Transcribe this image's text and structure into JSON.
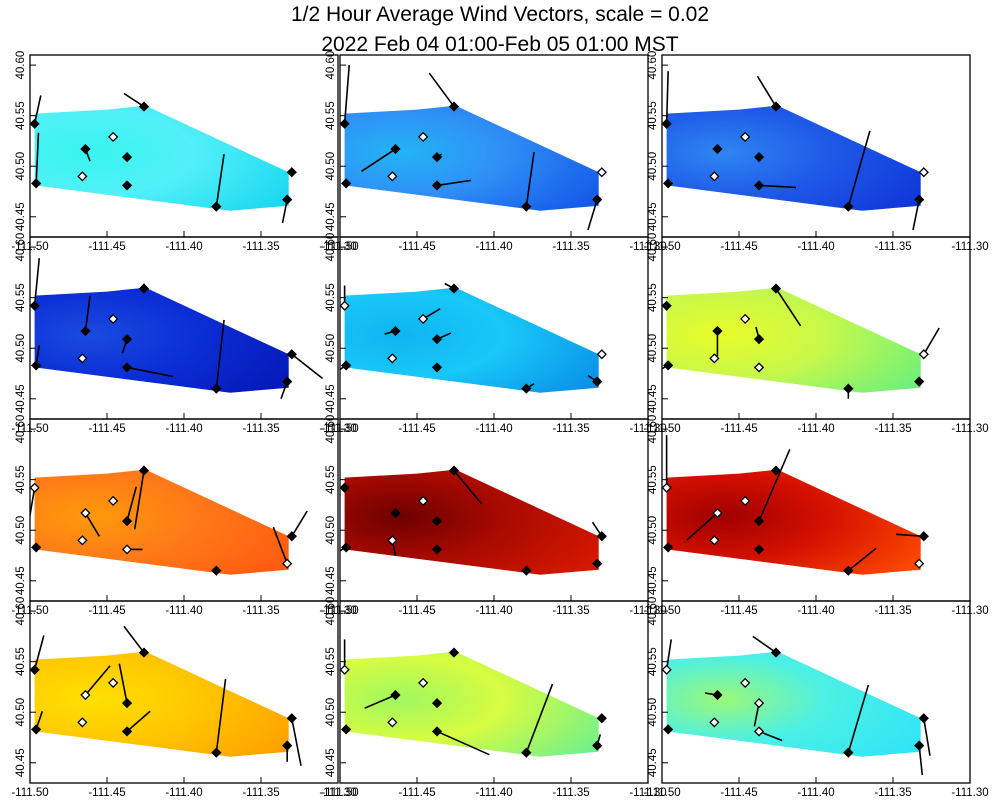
{
  "title": {
    "line1": "1/2 Hour Average Wind Vectors, scale =  0.02",
    "line2": "2022 Feb 04 01:00-Feb 05 01:00 MST"
  },
  "chart_data": {
    "type": "heatmap",
    "description_of_marks": "12 small-multiple map panels, each a colored interpolated field with wind-vector sticks at station markers",
    "xlim": [
      -111.5,
      -111.3
    ],
    "ylim": [
      40.43,
      40.61
    ],
    "xticks": [
      -111.5,
      -111.45,
      -111.4,
      -111.35,
      -111.3
    ],
    "xtick_labels": [
      "-111.50",
      "-111.45",
      "-111.40",
      "-111.35",
      "-111.30"
    ],
    "yticks": [
      40.45,
      40.5,
      40.55,
      40.6
    ],
    "ytick_labels": [
      "40.45",
      "40.50",
      "40.55",
      "40.60"
    ],
    "region_outline": [
      [
        -111.497,
        40.481
      ],
      [
        -111.497,
        40.552
      ],
      [
        -111.45,
        40.556
      ],
      [
        -111.425,
        40.56
      ],
      [
        -111.332,
        40.494
      ],
      [
        -111.332,
        40.461
      ],
      [
        -111.37,
        40.456
      ],
      [
        -111.497,
        40.481
      ]
    ],
    "stations": [
      {
        "id": "s1",
        "lon": -111.497,
        "lat": 40.542,
        "filled": true
      },
      {
        "id": "s2",
        "lon": -111.496,
        "lat": 40.483,
        "filled": true
      },
      {
        "id": "s3",
        "lon": -111.426,
        "lat": 40.559,
        "filled": true
      },
      {
        "id": "s4",
        "lon": -111.446,
        "lat": 40.529,
        "filled": false
      },
      {
        "id": "s5",
        "lon": -111.464,
        "lat": 40.517,
        "filled": true
      },
      {
        "id": "s6",
        "lon": -111.437,
        "lat": 40.509,
        "filled": true
      },
      {
        "id": "s7",
        "lon": -111.466,
        "lat": 40.49,
        "filled": false
      },
      {
        "id": "s8",
        "lon": -111.437,
        "lat": 40.481,
        "filled": true
      },
      {
        "id": "s9",
        "lon": -111.379,
        "lat": 40.46,
        "filled": true
      },
      {
        "id": "s10",
        "lon": -111.333,
        "lat": 40.467,
        "filled": true
      },
      {
        "id": "s11",
        "lon": -111.33,
        "lat": 40.494,
        "filled": true
      }
    ],
    "panels": [
      {
        "colors": [
          "#52f0f8",
          "#38f4ee",
          "#1ad7f0"
        ],
        "vectors": [
          [
            0.004,
            0.028
          ],
          [
            0.0015,
            0.05
          ],
          [
            -0.013,
            0.013
          ],
          [
            0,
            0
          ],
          [
            0.003,
            -0.012
          ],
          [
            0,
            0
          ],
          [
            0,
            0
          ],
          [
            0,
            0
          ],
          [
            0.005,
            0.052
          ],
          [
            -0.003,
            -0.023
          ],
          [
            0,
            0
          ]
        ],
        "hollow": []
      },
      {
        "colors": [
          "#2f8ff6",
          "#23b4f5",
          "#1457e8"
        ],
        "vectors": [
          [
            0.003,
            0.058
          ],
          [
            0,
            0
          ],
          [
            -0.016,
            0.033
          ],
          [
            0,
            0
          ],
          [
            -0.022,
            -0.022
          ],
          [
            0.003,
            0.003
          ],
          [
            0,
            0
          ],
          [
            0.022,
            0.005
          ],
          [
            0.005,
            0.054
          ],
          [
            -0.006,
            -0.03
          ],
          [
            0,
            0
          ]
        ],
        "hollow": [
          10
        ]
      },
      {
        "colors": [
          "#1f5be8",
          "#2f86f2",
          "#1036d8"
        ],
        "vectors": [
          [
            0.001,
            0.052
          ],
          [
            0,
            0
          ],
          [
            -0.012,
            0.03
          ],
          [
            0,
            0
          ],
          [
            0,
            0
          ],
          [
            0,
            0
          ],
          [
            0,
            0
          ],
          [
            0.024,
            -0.002
          ],
          [
            0.014,
            0.075
          ],
          [
            -0.004,
            -0.03
          ],
          [
            0,
            0
          ]
        ],
        "hollow": [
          10
        ]
      },
      {
        "colors": [
          "#0b2fd6",
          "#1a4be0",
          "#0518b8"
        ],
        "vectors": [
          [
            0.003,
            0.047
          ],
          [
            0.002,
            0.02
          ],
          [
            0,
            0.005
          ],
          [
            0,
            0
          ],
          [
            0.003,
            0.035
          ],
          [
            -0.003,
            -0.014
          ],
          [
            0,
            0
          ],
          [
            0.03,
            -0.009
          ],
          [
            0.005,
            0.068
          ],
          [
            -0.004,
            -0.017
          ],
          [
            0.02,
            -0.024
          ]
        ],
        "hollow": []
      },
      {
        "colors": [
          "#18c8f8",
          "#0fb4f2",
          "#0a90e8"
        ],
        "vectors": [
          [
            0,
            0.02
          ],
          [
            -0.007,
            -0.007
          ],
          [
            -0.006,
            0.005
          ],
          [
            0.011,
            0.01
          ],
          [
            -0.007,
            -0.003
          ],
          [
            0.009,
            0.006
          ],
          [
            0,
            0
          ],
          [
            0,
            0
          ],
          [
            0.005,
            0.005
          ],
          [
            -0.006,
            0.006
          ],
          [
            0,
            0
          ]
        ],
        "hollow": [
          0,
          10
        ]
      },
      {
        "colors": [
          "#c8f84a",
          "#e8fc28",
          "#6cf07c"
        ],
        "vectors": [
          [
            0,
            0
          ],
          [
            -0.01,
            -0.008
          ],
          [
            0.016,
            -0.037
          ],
          [
            0,
            0
          ],
          [
            0,
            -0.025
          ],
          [
            -0.002,
            0.012
          ],
          [
            0,
            0
          ],
          [
            0,
            0
          ],
          [
            0,
            -0.01
          ],
          [
            0,
            0
          ],
          [
            0.01,
            0.026
          ]
        ],
        "hollow": [
          7,
          10
        ]
      },
      {
        "colors": [
          "#ff7a18",
          "#ff9a0a",
          "#ff5a10"
        ],
        "vectors": [
          [
            -0.004,
            -0.036
          ],
          [
            0,
            0
          ],
          [
            -0.006,
            -0.058
          ],
          [
            0,
            0
          ],
          [
            0.009,
            -0.023
          ],
          [
            0.006,
            0.034
          ],
          [
            0,
            0
          ],
          [
            0.01,
            0
          ],
          [
            0,
            0
          ],
          [
            -0.009,
            0.036
          ],
          [
            0.01,
            0.025
          ]
        ],
        "hollow": [
          0,
          4,
          6,
          7,
          9
        ]
      },
      {
        "colors": [
          "#a80a00",
          "#6e0000",
          "#d81800"
        ],
        "vectors": [
          [
            0,
            0
          ],
          [
            -0.02,
            -0.016
          ],
          [
            0.018,
            -0.033
          ],
          [
            0,
            0
          ],
          [
            0,
            0
          ],
          [
            0,
            0
          ],
          [
            0.002,
            -0.015
          ],
          [
            0,
            0
          ],
          [
            0,
            0
          ],
          [
            0,
            0
          ],
          [
            -0.006,
            0.014
          ]
        ],
        "hollow": [
          6
        ]
      },
      {
        "colors": [
          "#d41000",
          "#a00000",
          "#ff4a00"
        ],
        "vectors": [
          [
            0,
            0.052
          ],
          [
            0,
            0
          ],
          [
            0,
            0
          ],
          [
            0,
            0
          ],
          [
            -0.02,
            -0.027
          ],
          [
            0.02,
            0.071
          ],
          [
            0,
            0
          ],
          [
            0,
            0
          ],
          [
            0.018,
            0.022
          ],
          [
            0,
            0
          ],
          [
            -0.018,
            0.002
          ]
        ],
        "hollow": [
          0,
          4,
          6,
          9
        ]
      },
      {
        "colors": [
          "#ffc800",
          "#ffe000",
          "#ffa000"
        ],
        "vectors": [
          [
            0.006,
            0.034
          ],
          [
            0.004,
            0.018
          ],
          [
            -0.013,
            0.026
          ],
          [
            0,
            0
          ],
          [
            0.016,
            0.029
          ],
          [
            -0.005,
            0.039
          ],
          [
            0,
            0
          ],
          [
            0.015,
            0.02
          ],
          [
            0.006,
            0.073
          ],
          [
            0,
            -0.016
          ],
          [
            0.006,
            -0.047
          ]
        ],
        "hollow": [
          4,
          6
        ]
      },
      {
        "colors": [
          "#d8fc40",
          "#a0f860",
          "#70f08c"
        ],
        "vectors": [
          [
            0,
            0.03
          ],
          [
            0,
            0
          ],
          [
            0,
            0
          ],
          [
            0,
            0
          ],
          [
            -0.02,
            -0.013
          ],
          [
            0,
            0
          ],
          [
            0,
            0
          ],
          [
            0.034,
            -0.023
          ],
          [
            0.017,
            0.068
          ],
          [
            0.002,
            0.011
          ],
          [
            0,
            0
          ]
        ],
        "hollow": [
          0,
          6
        ]
      },
      {
        "colors": [
          "#4cf0e4",
          "#9cf878",
          "#30e4f8"
        ],
        "vectors": [
          [
            0.003,
            0.03
          ],
          [
            0,
            0
          ],
          [
            -0.015,
            0.016
          ],
          [
            0,
            0
          ],
          [
            -0.008,
            0.002
          ],
          [
            -0.003,
            -0.023
          ],
          [
            0,
            0
          ],
          [
            0.015,
            -0.009
          ],
          [
            0.013,
            0.067
          ],
          [
            0.002,
            -0.029
          ],
          [
            0.004,
            -0.037
          ]
        ],
        "hollow": [
          0,
          5,
          6,
          7
        ]
      }
    ]
  }
}
